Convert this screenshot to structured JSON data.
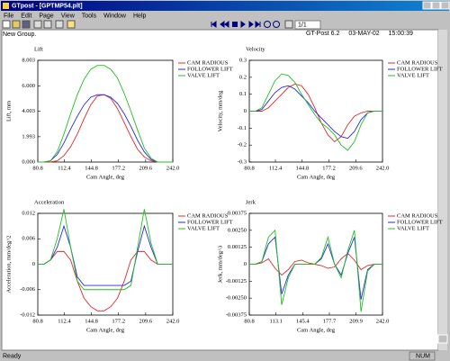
{
  "window": {
    "title": "GTpost - [GPTMP54.plt]",
    "menu": [
      "File",
      "Edit",
      "Page",
      "View",
      "Tools",
      "Window",
      "Help"
    ],
    "page_field": "1/1",
    "group": "New Group.",
    "header": [
      "GT-Post 6.2",
      "03-MAY-02",
      "15:00:39"
    ],
    "status": "Ready",
    "status_indicator": "NUM"
  },
  "chart_data": [
    {
      "type": "line",
      "title": "Lift",
      "x_label": "Cam Angle, deg",
      "y_label": "Lift, mm",
      "legend_position": "right",
      "grid": false,
      "xlim": [
        80.8,
        242
      ],
      "ylim": [
        0,
        8.003
      ],
      "xticks": [
        80.8,
        112.4,
        144.8,
        177.2,
        209.6,
        {
          "value": 242,
          "label": "242.0"
        }
      ],
      "yticks": [
        {
          "value": 0,
          "label": "0.000"
        },
        1.993,
        4.003,
        {
          "value": 6,
          "label": "6.000"
        },
        8.003
      ],
      "x": [
        80.8,
        88,
        96,
        104,
        112,
        120,
        128,
        136,
        144,
        152,
        160,
        168,
        176,
        184,
        192,
        200,
        208,
        216,
        224,
        232,
        242
      ],
      "series": [
        {
          "name": "CAM RADIOUS",
          "color": "#e02828",
          "values": [
            0,
            0,
            0,
            0.1,
            0.5,
            1.2,
            2.2,
            3.4,
            4.5,
            5.2,
            5.3,
            5.0,
            4.2,
            3.1,
            2.0,
            1.0,
            0.4,
            0.1,
            0,
            0,
            0
          ]
        },
        {
          "name": "FOLLOWER LIFT",
          "color": "#2828e0",
          "values": [
            0,
            0,
            0.1,
            0.6,
            1.5,
            2.6,
            3.6,
            4.5,
            5.1,
            5.3,
            5.3,
            5.1,
            4.6,
            3.8,
            2.8,
            1.7,
            0.8,
            0.2,
            0,
            0,
            0
          ]
        },
        {
          "name": "VALVE LIFT",
          "color": "#20c020",
          "values": [
            0,
            0,
            0.1,
            0.8,
            2.2,
            3.8,
            5.3,
            6.5,
            7.3,
            7.6,
            7.6,
            7.3,
            6.6,
            5.4,
            4.0,
            2.5,
            1.1,
            0.3,
            0,
            0,
            0
          ]
        }
      ]
    },
    {
      "type": "line",
      "title": "Velocity",
      "x_label": "Cam Angle, deg",
      "y_label": "Velocity, mm/deg",
      "legend_position": "right",
      "grid": false,
      "xlim": [
        80.8,
        242
      ],
      "ylim": [
        -0.3,
        0.3
      ],
      "xticks": [
        80.8,
        112.4,
        144.8,
        177.2,
        209.6,
        {
          "value": 242,
          "label": "242.0"
        }
      ],
      "yticks": [
        -0.3,
        -0.2,
        -0.1,
        0,
        0.1,
        0.2,
        0.3
      ],
      "x": [
        80.8,
        88,
        96,
        104,
        112,
        120,
        128,
        136,
        144,
        152,
        160,
        168,
        176,
        184,
        192,
        200,
        208,
        216,
        224,
        232,
        242
      ],
      "series": [
        {
          "name": "CAM RADIOUS",
          "color": "#e02828",
          "values": [
            0,
            0,
            0,
            0.02,
            0.06,
            0.1,
            0.14,
            0.16,
            0.15,
            0.1,
            0.02,
            -0.07,
            -0.14,
            -0.18,
            -0.15,
            -0.08,
            -0.03,
            -0.01,
            0,
            0,
            0
          ]
        },
        {
          "name": "FOLLOWER LIFT",
          "color": "#2828e0",
          "values": [
            0,
            0,
            0.01,
            0.06,
            0.11,
            0.14,
            0.15,
            0.13,
            0.09,
            0.05,
            0,
            -0.04,
            -0.08,
            -0.12,
            -0.15,
            -0.16,
            -0.12,
            -0.05,
            -0.01,
            0,
            0
          ]
        },
        {
          "name": "VALVE LIFT",
          "color": "#20c020",
          "values": [
            0,
            0,
            0.02,
            0.1,
            0.18,
            0.22,
            0.21,
            0.17,
            0.1,
            0.04,
            -0.02,
            -0.07,
            -0.1,
            -0.14,
            -0.2,
            -0.23,
            -0.18,
            -0.08,
            -0.01,
            0,
            0
          ]
        }
      ]
    },
    {
      "type": "line",
      "title": "Acceleration",
      "x_label": "Cam Angle, deg",
      "y_label": "Acceleration, mm/deg^2",
      "legend_position": "right",
      "grid": false,
      "xlim": [
        80.8,
        242
      ],
      "ylim": [
        -0.012,
        0.012
      ],
      "xticks": [
        80.8,
        112.4,
        144.8,
        177.2,
        209.6,
        {
          "value": 242,
          "label": "242.0"
        }
      ],
      "yticks": [
        -0.012,
        -0.006,
        0,
        0.006,
        0.012
      ],
      "x": [
        80.8,
        88,
        96,
        104,
        112,
        120,
        128,
        136,
        144,
        152,
        160,
        168,
        176,
        184,
        192,
        200,
        208,
        216,
        224,
        232,
        242
      ],
      "series": [
        {
          "name": "CAM RADIOUS",
          "color": "#e02828",
          "values": [
            0,
            0,
            0.001,
            0.003,
            0.003,
            0.001,
            -0.004,
            -0.008,
            -0.01,
            -0.011,
            -0.011,
            -0.01,
            -0.008,
            -0.004,
            0.001,
            0.003,
            0.003,
            0.001,
            0,
            0,
            0
          ]
        },
        {
          "name": "FOLLOWER LIFT",
          "color": "#2828e0",
          "values": [
            0,
            0,
            0.001,
            0.004,
            0.009,
            0.004,
            -0.003,
            -0.005,
            -0.005,
            -0.005,
            -0.005,
            -0.005,
            -0.005,
            -0.005,
            -0.004,
            0.003,
            0.009,
            0.004,
            0,
            0,
            0
          ]
        },
        {
          "name": "VALVE LIFT",
          "color": "#20c020",
          "values": [
            0,
            0,
            0.001,
            0.006,
            0.013,
            0.004,
            -0.004,
            -0.006,
            -0.006,
            -0.006,
            -0.006,
            -0.006,
            -0.006,
            -0.006,
            -0.005,
            0.004,
            0.013,
            0.005,
            0,
            0,
            0
          ]
        }
      ]
    },
    {
      "type": "line",
      "title": "Jerk",
      "x_label": "Cam Angle, deg",
      "y_label": "Jerk, mm/deg^3",
      "legend_position": "right",
      "grid": false,
      "xlim": [
        80.8,
        242
      ],
      "ylim": [
        -0.00375,
        0.00375
      ],
      "xticks": [
        80.8,
        113.1,
        145.4,
        177.7,
        209.9,
        {
          "value": 242,
          "label": "242.0"
        }
      ],
      "yticks": [
        -0.00375,
        {
          "value": -0.0025,
          "label": "-0.00250"
        },
        -0.00125,
        0,
        0.00125,
        {
          "value": 0.0025,
          "label": "0.00250"
        },
        0.00375
      ],
      "x": [
        80.8,
        88,
        96,
        104,
        112,
        120,
        128,
        136,
        144,
        152,
        160,
        168,
        176,
        184,
        192,
        200,
        208,
        216,
        224,
        232,
        242
      ],
      "series": [
        {
          "name": "CAM RADIOUS",
          "color": "#e02828",
          "values": [
            0,
            0,
            0.0001,
            0.0004,
            -0.0003,
            -0.0008,
            -0.0004,
            0.0002,
            0.0003,
            0.0001,
            0,
            -0.0001,
            -0.0003,
            -0.0002,
            0.0004,
            0.0008,
            0.0003,
            -0.0004,
            -0.0001,
            0,
            0
          ]
        },
        {
          "name": "FOLLOWER LIFT",
          "color": "#2828e0",
          "values": [
            0,
            0,
            0.0002,
            0.0015,
            0.002,
            -0.0022,
            -0.0008,
            0,
            0,
            0,
            0,
            0.0004,
            0.0015,
            0,
            -0.0008,
            0.0008,
            0.002,
            -0.0026,
            -0.0004,
            0,
            0
          ]
        },
        {
          "name": "VALVE LIFT",
          "color": "#20c020",
          "values": [
            0,
            0,
            0.0002,
            0.002,
            0.0025,
            -0.003,
            -0.001,
            0,
            0,
            0,
            0,
            0.0005,
            0.002,
            0,
            -0.001,
            0.001,
            0.0025,
            -0.0035,
            -0.0005,
            0,
            0
          ]
        }
      ]
    }
  ]
}
